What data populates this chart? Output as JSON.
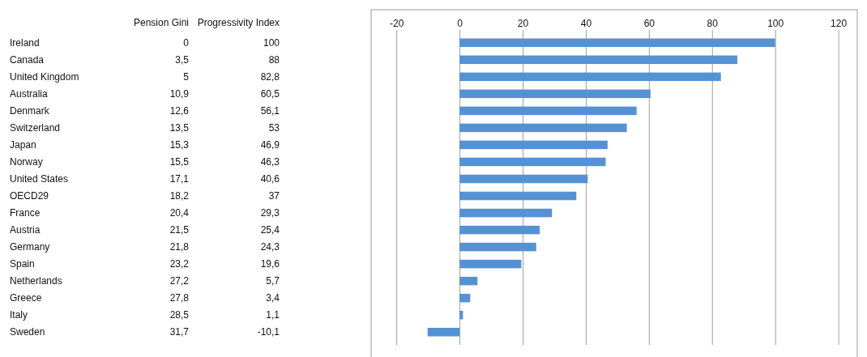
{
  "chart_data": [
    {
      "type": "other",
      "categories": [
        "Ireland",
        "Canada",
        "United Kingdom",
        "Australia",
        "Denmark",
        "Switzerland",
        "Japan",
        "Norway",
        "United States",
        "OECD29",
        "France",
        "Austria",
        "Germany",
        "Spain",
        "Netherlands",
        "Greece",
        "Italy",
        "Sweden"
      ],
      "series": [
        {
          "name": "Pension Gini",
          "values": [
            0,
            3.5,
            5,
            10.9,
            12.6,
            13.5,
            15.3,
            15.5,
            17.1,
            18.2,
            20.4,
            21.5,
            21.8,
            23.2,
            27.2,
            27.8,
            28.5,
            31.7
          ],
          "value_labels": [
            "0",
            "3,5",
            "5",
            "10,9",
            "12,6",
            "13,5",
            "15,3",
            "15,5",
            "17,1",
            "18,2",
            "20,4",
            "21,5",
            "21,8",
            "23,2",
            "27,2",
            "27,8",
            "28,5",
            "31,7"
          ]
        }
      ]
    },
    {
      "type": "bar",
      "orientation": "horizontal",
      "categories": [
        null,
        null,
        null,
        null,
        null,
        null,
        null,
        null,
        null,
        null,
        null,
        null,
        null,
        null,
        null,
        null,
        null,
        null
      ],
      "series": [
        {
          "name": "Progressivity Index",
          "type": "bar",
          "color": "#5592d4",
          "values": [
            100,
            88,
            82.8,
            60.5,
            56.1,
            53,
            46.9,
            46.3,
            40.6,
            37,
            29.3,
            25.4,
            24.3,
            19.6,
            5.7,
            3.4,
            1.1,
            -10.1
          ],
          "value_labels": [
            "100",
            "88",
            "82,8",
            "60,5",
            "56,1",
            "53",
            "46,9",
            "46,3",
            "40,6",
            "37",
            "29,3",
            "25,4",
            "24,3",
            "19,6",
            "5,7",
            "3,4",
            "1,1",
            "-10,1"
          ]
        }
      ],
      "xlim": [
        -28,
        126
      ],
      "xticks": [
        -20,
        0,
        20,
        40,
        60,
        80,
        100,
        120
      ],
      "grid": "x"
    }
  ]
}
